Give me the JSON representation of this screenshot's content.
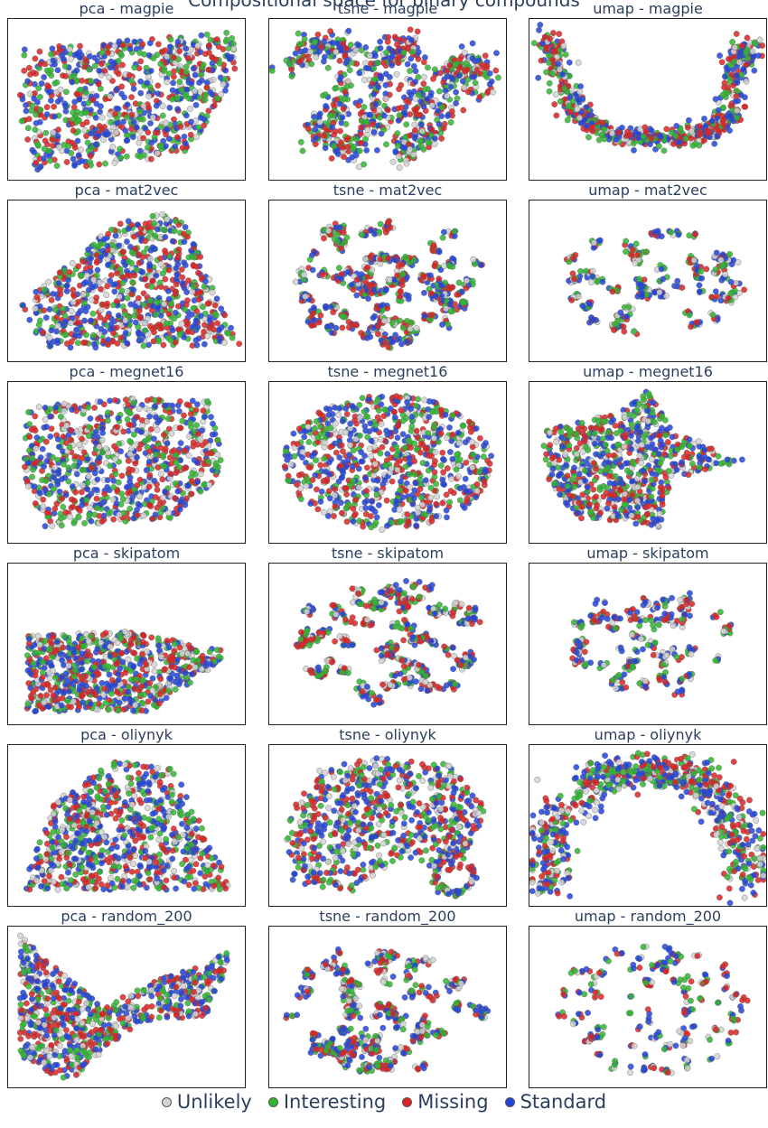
{
  "figure_title": "Compositional space for binary compounds",
  "chart_data": {
    "type": "scatter",
    "rows": [
      "magpie",
      "mat2vec",
      "megnet16",
      "skipatom",
      "oliynyk",
      "random_200"
    ],
    "columns": [
      "pca",
      "tsne",
      "umap"
    ],
    "panels": [
      {
        "title": "pca - magpie",
        "method": "pca",
        "embedding": "magpie",
        "shape": "wedge_pca"
      },
      {
        "title": "tsne - magpie",
        "method": "tsne",
        "embedding": "magpie",
        "shape": "snake"
      },
      {
        "title": "umap - magpie",
        "method": "umap",
        "embedding": "magpie",
        "shape": "umap_u"
      },
      {
        "title": "pca - mat2vec",
        "method": "pca",
        "embedding": "mat2vec",
        "shape": "triangle"
      },
      {
        "title": "tsne - mat2vec",
        "method": "tsne",
        "embedding": "mat2vec",
        "shape": "clusters_oval"
      },
      {
        "title": "umap - mat2vec",
        "method": "umap",
        "embedding": "mat2vec",
        "shape": "clusters_sparse"
      },
      {
        "title": "pca - megnet16",
        "method": "pca",
        "embedding": "megnet16",
        "shape": "blob_pca"
      },
      {
        "title": "tsne - megnet16",
        "method": "tsne",
        "embedding": "megnet16",
        "shape": "dense_oval"
      },
      {
        "title": "umap - megnet16",
        "method": "umap",
        "embedding": "megnet16",
        "shape": "umap_blob"
      },
      {
        "title": "pca - skipatom",
        "method": "pca",
        "embedding": "skipatom",
        "shape": "slab"
      },
      {
        "title": "tsne - skipatom",
        "method": "tsne",
        "embedding": "skipatom",
        "shape": "clusters_oval"
      },
      {
        "title": "umap - skipatom",
        "method": "umap",
        "embedding": "skipatom",
        "shape": "clusters_sparse"
      },
      {
        "title": "pca - oliynyk",
        "method": "pca",
        "embedding": "oliynyk",
        "shape": "dome"
      },
      {
        "title": "tsne - oliynyk",
        "method": "tsne",
        "embedding": "oliynyk",
        "shape": "tsne_oliynyk"
      },
      {
        "title": "umap - oliynyk",
        "method": "umap",
        "embedding": "oliynyk",
        "shape": "arch"
      },
      {
        "title": "pca - random_200",
        "method": "pca",
        "embedding": "random_200",
        "shape": "bowtie"
      },
      {
        "title": "tsne - random_200",
        "method": "tsne",
        "embedding": "random_200",
        "shape": "clusters_oval"
      },
      {
        "title": "umap - random_200",
        "method": "umap",
        "embedding": "random_200",
        "shape": "scatter_sparse"
      }
    ],
    "legend": [
      {
        "name": "Unlikely",
        "color": "#d3d3d3"
      },
      {
        "name": "Interesting",
        "color": "#2eb82e"
      },
      {
        "name": "Missing",
        "color": "#dd2222"
      },
      {
        "name": "Standard",
        "color": "#2244dd"
      }
    ],
    "legend_position": "bottom",
    "axes_visible": false,
    "grid": false
  }
}
